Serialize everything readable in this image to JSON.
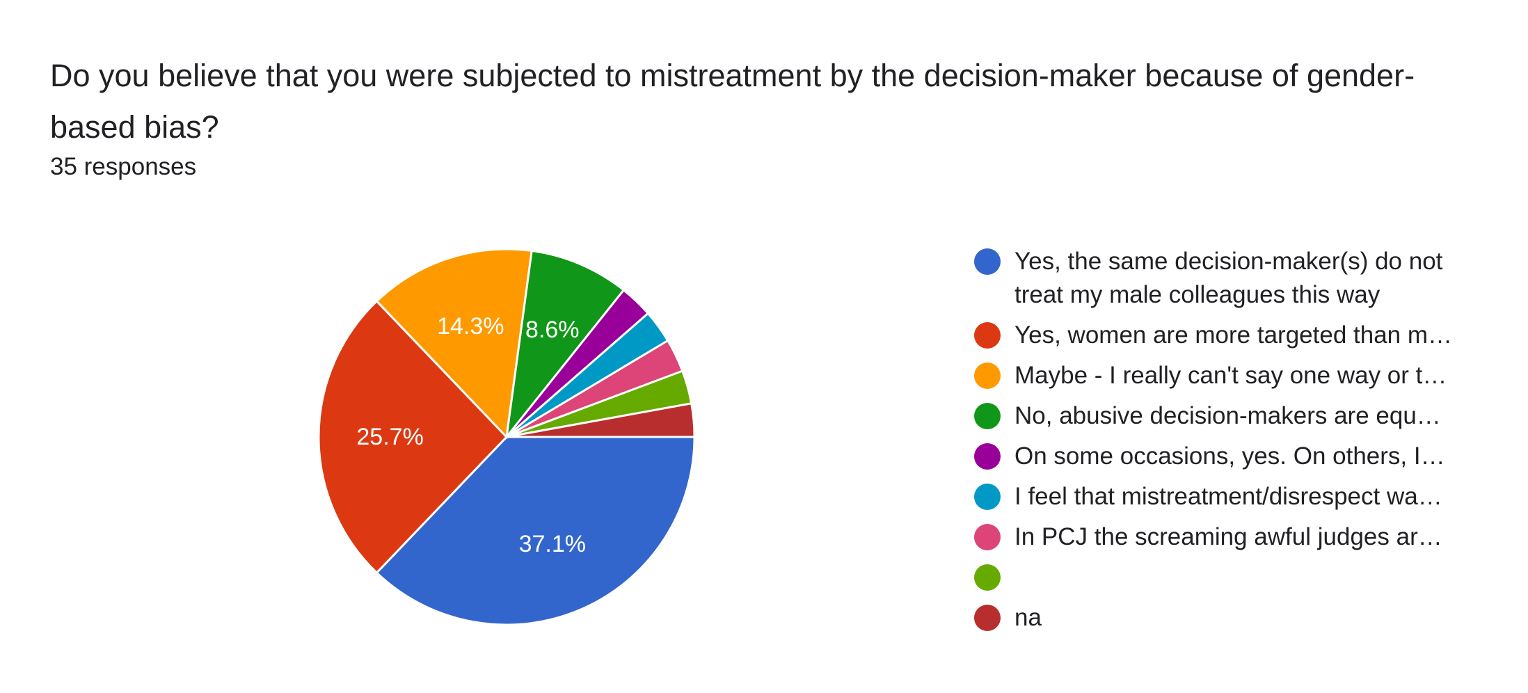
{
  "question": {
    "title": "Do you believe that you were subjected to mistreatment by the decision-maker because of gender-based bias?",
    "responses": "35 responses"
  },
  "chart_data": {
    "type": "pie",
    "total_responses": 35,
    "slices": [
      {
        "label": "Yes, the same decision-maker(s) do not treat my male colleagues this way",
        "value": 13,
        "percent_label": "37.1%",
        "color": "#3366cc"
      },
      {
        "label": "Yes, women are more targeted than m…",
        "value": 9,
        "percent_label": "25.7%",
        "color": "#dc3912"
      },
      {
        "label": "Maybe - I really can't say one way or t…",
        "value": 5,
        "percent_label": "14.3%",
        "color": "#ff9900"
      },
      {
        "label": "No, abusive decision-makers are equ…",
        "value": 3,
        "percent_label": "8.6%",
        "color": "#109618"
      },
      {
        "label": "On some occasions, yes. On others, I…",
        "value": 1,
        "percent_label": "",
        "color": "#990099"
      },
      {
        "label": "I feel that mistreatment/disrespect wa…",
        "value": 1,
        "percent_label": "",
        "color": "#0099c6"
      },
      {
        "label": "In PCJ the screaming awful judges ar…",
        "value": 1,
        "percent_label": "",
        "color": "#dd4477"
      },
      {
        "label": "",
        "value": 1,
        "percent_label": "",
        "color": "#66aa00"
      },
      {
        "label": "na",
        "value": 1,
        "percent_label": "",
        "color": "#b82e2e"
      }
    ]
  }
}
